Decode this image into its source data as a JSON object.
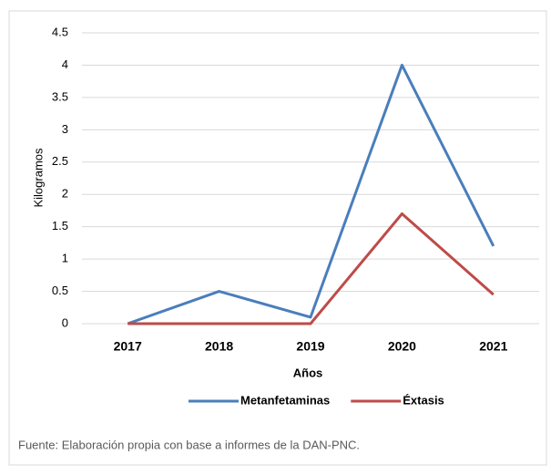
{
  "chart_data": {
    "type": "line",
    "y_label": "Kilogramos",
    "x_label": "Años",
    "categories": [
      "2017",
      "2018",
      "2019",
      "2020",
      "2021"
    ],
    "series": [
      {
        "name": "Metanfetaminas",
        "color": "#4a7ebb",
        "values": [
          0,
          0.5,
          0.1,
          4,
          1.2
        ]
      },
      {
        "name": "Éxtasis",
        "color": "#be4b48",
        "values": [
          0,
          0,
          0,
          1.7,
          0.45
        ]
      }
    ],
    "ylim": [
      0,
      4.5
    ],
    "yticks": [
      0,
      0.5,
      1,
      1.5,
      2,
      2.5,
      3,
      3.5,
      4,
      4.5
    ],
    "grid": true,
    "legend": "bottom",
    "source": "Fuente: Elaboración propia con base a informes de la DAN-PNC."
  }
}
